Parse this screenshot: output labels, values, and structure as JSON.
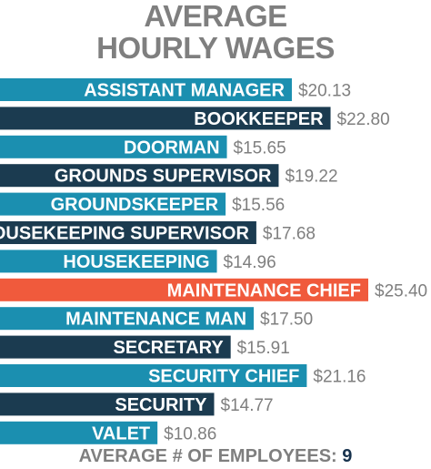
{
  "chart_data": {
    "type": "bar",
    "orientation": "horizontal",
    "title": "AVERAGE HOURLY WAGES",
    "title_lines": [
      "AVERAGE",
      "HOURLY WAGES"
    ],
    "categories": [
      "ASSISTANT MANAGER",
      "BOOKKEEPER",
      "DOORMAN",
      "GROUNDS SUPERVISOR",
      "GROUNDSKEEPER",
      "HOUSEKEEPING SUPERVISOR",
      "HOUSEKEEPING",
      "MAINTENANCE CHIEF",
      "MAINTENANCE MAN",
      "SECRETARY",
      "SECURITY CHIEF",
      "SECURITY",
      "VALET"
    ],
    "values": [
      20.13,
      22.8,
      15.65,
      19.22,
      15.56,
      17.68,
      14.96,
      25.4,
      17.5,
      15.91,
      21.16,
      14.77,
      10.86
    ],
    "value_labels": [
      "$20.13",
      "$22.80",
      "$15.65",
      "$19.22",
      "$15.56",
      "$17.68",
      "$14.96",
      "$25.40",
      "$17.50",
      "$15.91",
      "$21.16",
      "$14.77",
      "$10.86"
    ],
    "highlight": "MAINTENANCE CHIEF",
    "colors": {
      "light": "#1b8fb0",
      "dark": "#1b3b50",
      "highlight": "#f05a3c",
      "value_text": "#7f7f7f",
      "title_text": "#7f7f7f"
    },
    "legend": "none",
    "grid": false
  },
  "footer": {
    "label": "AVERAGE # OF EMPLOYEES:",
    "value": "9"
  }
}
